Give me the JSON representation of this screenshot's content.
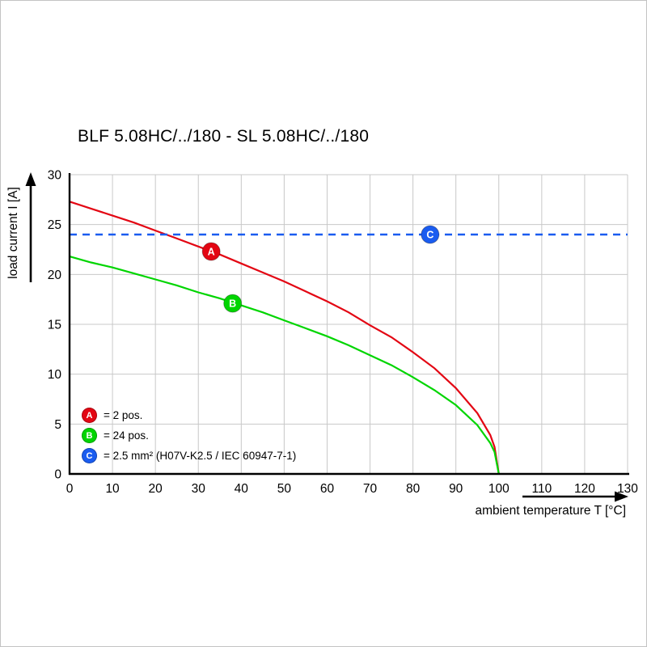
{
  "chart_data": {
    "type": "line",
    "title": "BLF 5.08HC/../180 - SL 5.08HC/../180",
    "xlabel": "ambient temperature T [°C]",
    "ylabel": "load current I [A]",
    "xlim": [
      0,
      130
    ],
    "ylim": [
      0,
      30
    ],
    "xticks": [
      0,
      10,
      20,
      30,
      40,
      50,
      60,
      70,
      80,
      90,
      100,
      110,
      120,
      130
    ],
    "yticks": [
      0,
      5,
      10,
      15,
      20,
      25,
      30
    ],
    "grid": true,
    "grid_color": "#c8c8c8",
    "axis_color": "#000000",
    "legend_position": "bottom-left-inside",
    "series": [
      {
        "name": "A",
        "legend": "= 2 pos.",
        "color": "#e30613",
        "line_style": "solid",
        "marker_at": [
          33,
          22.3
        ],
        "points": [
          [
            0,
            27.3
          ],
          [
            5,
            26.6
          ],
          [
            10,
            25.9
          ],
          [
            15,
            25.2
          ],
          [
            20,
            24.4
          ],
          [
            25,
            23.6
          ],
          [
            30,
            22.8
          ],
          [
            35,
            22.0
          ],
          [
            40,
            21.1
          ],
          [
            45,
            20.2
          ],
          [
            50,
            19.3
          ],
          [
            55,
            18.3
          ],
          [
            60,
            17.3
          ],
          [
            65,
            16.2
          ],
          [
            70,
            14.9
          ],
          [
            75,
            13.7
          ],
          [
            80,
            12.2
          ],
          [
            85,
            10.6
          ],
          [
            90,
            8.6
          ],
          [
            95,
            6.1
          ],
          [
            98,
            3.9
          ],
          [
            99,
            2.7
          ],
          [
            100,
            0
          ]
        ]
      },
      {
        "name": "B",
        "legend": "= 24 pos.",
        "color": "#00d500",
        "line_style": "solid",
        "marker_at": [
          38,
          17.1
        ],
        "points": [
          [
            0,
            21.8
          ],
          [
            5,
            21.2
          ],
          [
            10,
            20.7
          ],
          [
            15,
            20.1
          ],
          [
            20,
            19.5
          ],
          [
            25,
            18.9
          ],
          [
            30,
            18.2
          ],
          [
            35,
            17.6
          ],
          [
            40,
            16.9
          ],
          [
            45,
            16.2
          ],
          [
            50,
            15.4
          ],
          [
            55,
            14.6
          ],
          [
            60,
            13.8
          ],
          [
            65,
            12.9
          ],
          [
            70,
            11.9
          ],
          [
            75,
            10.9
          ],
          [
            80,
            9.7
          ],
          [
            85,
            8.4
          ],
          [
            90,
            6.9
          ],
          [
            95,
            4.9
          ],
          [
            98,
            3.1
          ],
          [
            99,
            2.2
          ],
          [
            100,
            0
          ]
        ]
      },
      {
        "name": "C",
        "legend": "= 2.5 mm² (H07V-K2.5 / IEC 60947-7-1)",
        "color": "#1a5cf0",
        "line_style": "dashed",
        "marker_at": [
          84,
          24
        ],
        "points": [
          [
            0,
            24
          ],
          [
            130,
            24
          ]
        ]
      }
    ]
  }
}
